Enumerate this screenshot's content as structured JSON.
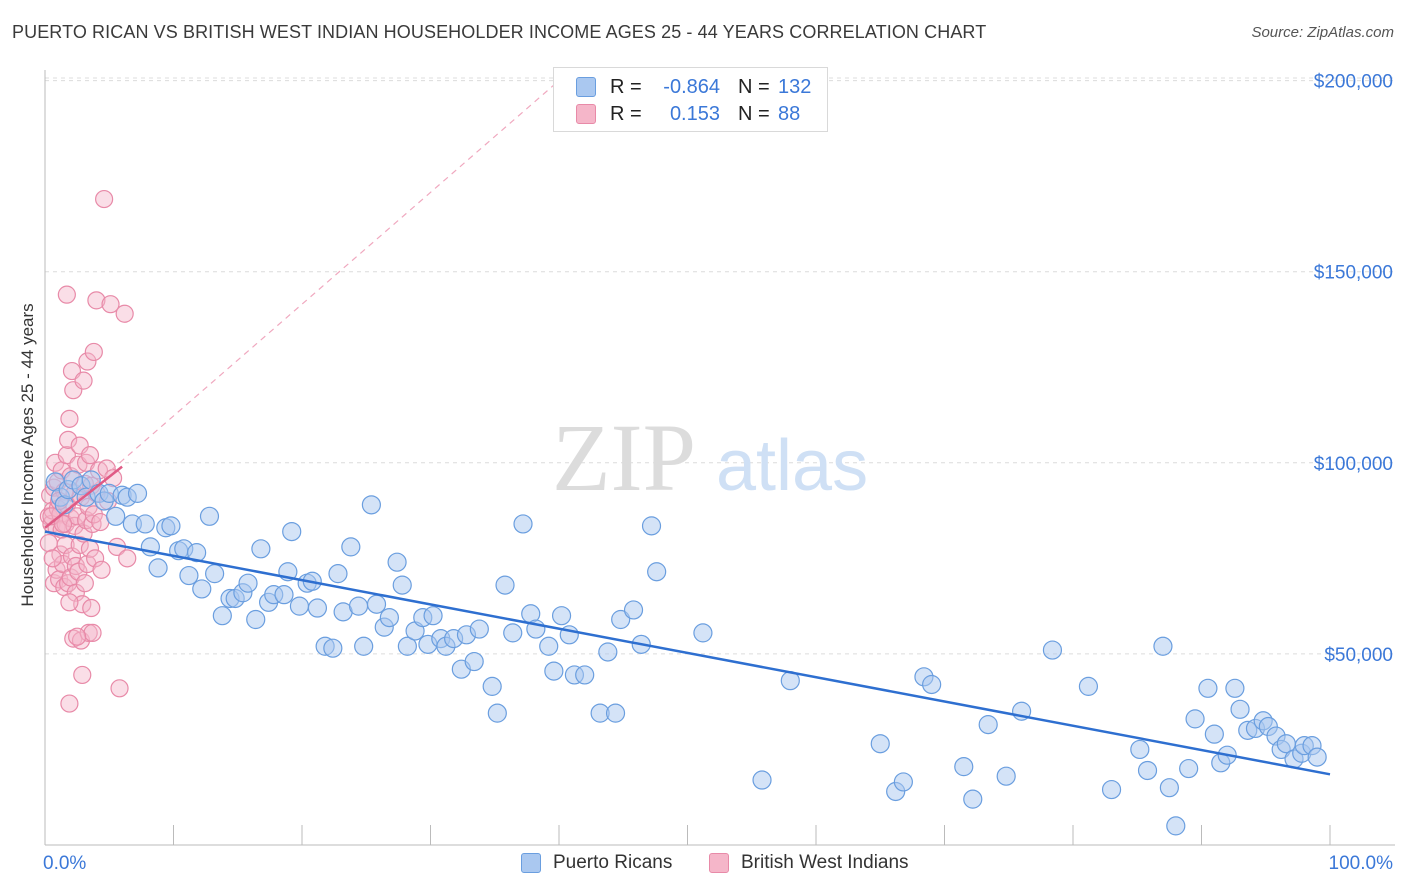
{
  "header": {
    "title": "PUERTO RICAN VS BRITISH WEST INDIAN HOUSEHOLDER INCOME AGES 25 - 44 YEARS CORRELATION CHART",
    "source": "Source: ZipAtlas.com"
  },
  "legend": {
    "rows": [
      {
        "r_label": "R =",
        "r_value": "-0.864",
        "n_label": "N =",
        "n_value": "132"
      },
      {
        "r_label": "R =",
        "r_value": "0.153",
        "n_label": "N =",
        "n_value": "88"
      }
    ],
    "bottom": [
      "Puerto Ricans",
      "British West Indians"
    ]
  },
  "colors": {
    "blue_fill": "#aac8f0",
    "blue_stroke": "#6a9edf",
    "blue_line": "#2e6fd0",
    "pink_fill": "#f5b6c9",
    "pink_stroke": "#e88aa8",
    "pink_line": "#e05a85",
    "tick_text": "#3b78d8",
    "grid": "#dcdcdc"
  },
  "watermark": {
    "zip": "ZIP",
    "atlas": "atlas"
  },
  "chart_data": {
    "type": "scatter",
    "title": "PUERTO RICAN VS BRITISH WEST INDIAN HOUSEHOLDER INCOME AGES 25 - 44 YEARS CORRELATION CHART",
    "xlabel": "",
    "ylabel": "Householder Income Ages 25 - 44 years",
    "xlim": [
      0,
      100
    ],
    "ylim": [
      0,
      215000
    ],
    "x_tick_labels": [
      "0.0%",
      "100.0%"
    ],
    "y_ticks": [
      50000,
      100000,
      150000,
      200000
    ],
    "y_tick_labels": [
      "$50,000",
      "$100,000",
      "$150,000",
      "$200,000"
    ],
    "grid": true,
    "series": [
      {
        "name": "Puerto Ricans",
        "r": -0.864,
        "n": 132,
        "trend": {
          "x": [
            0,
            100
          ],
          "y": [
            82000,
            18500
          ]
        },
        "points": [
          [
            0.8,
            95000
          ],
          [
            1.2,
            91000
          ],
          [
            1.5,
            89000
          ],
          [
            1.8,
            93000
          ],
          [
            2.2,
            95500
          ],
          [
            2.8,
            94000
          ],
          [
            3.2,
            91000
          ],
          [
            3.6,
            95500
          ],
          [
            4.2,
            92000
          ],
          [
            4.6,
            90000
          ],
          [
            5.0,
            92000
          ],
          [
            5.5,
            86000
          ],
          [
            6.0,
            91500
          ],
          [
            6.4,
            91000
          ],
          [
            7.2,
            92000
          ],
          [
            6.8,
            84000
          ],
          [
            7.8,
            84000
          ],
          [
            8.2,
            78000
          ],
          [
            8.8,
            72500
          ],
          [
            9.4,
            83000
          ],
          [
            9.8,
            83500
          ],
          [
            10.4,
            77000
          ],
          [
            10.8,
            77500
          ],
          [
            11.2,
            70500
          ],
          [
            11.8,
            76500
          ],
          [
            12.2,
            67000
          ],
          [
            12.8,
            86000
          ],
          [
            13.2,
            71000
          ],
          [
            13.8,
            60000
          ],
          [
            14.4,
            64500
          ],
          [
            14.8,
            64500
          ],
          [
            15.4,
            66000
          ],
          [
            15.8,
            68500
          ],
          [
            16.4,
            59000
          ],
          [
            16.8,
            77500
          ],
          [
            17.4,
            63500
          ],
          [
            17.8,
            65500
          ],
          [
            18.6,
            65500
          ],
          [
            18.9,
            71500
          ],
          [
            19.2,
            82000
          ],
          [
            19.8,
            62500
          ],
          [
            20.4,
            68500
          ],
          [
            20.8,
            69000
          ],
          [
            21.2,
            62000
          ],
          [
            21.8,
            52000
          ],
          [
            22.4,
            51500
          ],
          [
            22.8,
            71000
          ],
          [
            23.2,
            61000
          ],
          [
            23.8,
            78000
          ],
          [
            24.4,
            62500
          ],
          [
            24.8,
            52000
          ],
          [
            25.4,
            89000
          ],
          [
            25.8,
            63000
          ],
          [
            26.4,
            57000
          ],
          [
            26.8,
            59500
          ],
          [
            27.4,
            74000
          ],
          [
            27.8,
            68000
          ],
          [
            28.2,
            52000
          ],
          [
            28.8,
            56000
          ],
          [
            29.4,
            59500
          ],
          [
            29.8,
            52500
          ],
          [
            30.2,
            60000
          ],
          [
            30.8,
            54000
          ],
          [
            31.2,
            52000
          ],
          [
            31.8,
            54000
          ],
          [
            32.4,
            46000
          ],
          [
            32.8,
            55000
          ],
          [
            33.4,
            48000
          ],
          [
            33.8,
            56500
          ],
          [
            34.8,
            41500
          ],
          [
            35.2,
            34500
          ],
          [
            35.8,
            68000
          ],
          [
            36.4,
            55500
          ],
          [
            37.2,
            84000
          ],
          [
            37.8,
            60500
          ],
          [
            38.2,
            56500
          ],
          [
            39.2,
            52000
          ],
          [
            39.6,
            45500
          ],
          [
            40.2,
            60000
          ],
          [
            40.8,
            55000
          ],
          [
            41.2,
            44500
          ],
          [
            42.0,
            44500
          ],
          [
            43.2,
            34500
          ],
          [
            43.8,
            50500
          ],
          [
            44.4,
            34500
          ],
          [
            44.8,
            59000
          ],
          [
            45.8,
            61500
          ],
          [
            46.4,
            52500
          ],
          [
            47.2,
            83500
          ],
          [
            47.6,
            71500
          ],
          [
            51.2,
            55500
          ],
          [
            55.8,
            17000
          ],
          [
            58.0,
            43000
          ],
          [
            65.0,
            26500
          ],
          [
            66.2,
            14000
          ],
          [
            66.8,
            16500
          ],
          [
            68.4,
            44000
          ],
          [
            69.0,
            42000
          ],
          [
            71.5,
            20500
          ],
          [
            72.2,
            12000
          ],
          [
            73.4,
            31500
          ],
          [
            74.8,
            18000
          ],
          [
            76.0,
            35000
          ],
          [
            78.4,
            51000
          ],
          [
            81.2,
            41500
          ],
          [
            83.0,
            14500
          ],
          [
            85.2,
            25000
          ],
          [
            85.8,
            19500
          ],
          [
            87.0,
            52000
          ],
          [
            87.5,
            15000
          ],
          [
            88.0,
            5000
          ],
          [
            89.0,
            20000
          ],
          [
            89.5,
            33000
          ],
          [
            90.5,
            41000
          ],
          [
            91.0,
            29000
          ],
          [
            91.5,
            21500
          ],
          [
            92.0,
            23500
          ],
          [
            92.6,
            41000
          ],
          [
            93.0,
            35500
          ],
          [
            93.6,
            30000
          ],
          [
            94.2,
            30500
          ],
          [
            94.8,
            32500
          ],
          [
            95.2,
            31000
          ],
          [
            95.8,
            28500
          ],
          [
            96.2,
            25000
          ],
          [
            96.6,
            26500
          ],
          [
            97.2,
            22500
          ],
          [
            97.8,
            24000
          ],
          [
            98.0,
            26000
          ],
          [
            98.6,
            26000
          ],
          [
            99.0,
            23000
          ]
        ]
      },
      {
        "name": "British West Indians",
        "r": 0.153,
        "n": 88,
        "trend": {
          "x": [
            0,
            6
          ],
          "y": [
            83000,
            99000
          ]
        },
        "trend_extended": {
          "x": [
            0,
            40
          ],
          "y": [
            83000,
            200000
          ]
        },
        "points": [
          [
            0.3,
            86000
          ],
          [
            0.3,
            79000
          ],
          [
            0.4,
            91500
          ],
          [
            0.5,
            84000
          ],
          [
            0.6,
            87500
          ],
          [
            0.7,
            93500
          ],
          [
            0.7,
            68500
          ],
          [
            0.8,
            100000
          ],
          [
            0.9,
            83000
          ],
          [
            0.9,
            72000
          ],
          [
            1.0,
            88000
          ],
          [
            1.0,
            95000
          ],
          [
            1.1,
            69500
          ],
          [
            1.2,
            76000
          ],
          [
            1.2,
            86500
          ],
          [
            1.3,
            82500
          ],
          [
            1.3,
            98000
          ],
          [
            1.4,
            73500
          ],
          [
            1.5,
            92500
          ],
          [
            1.5,
            67500
          ],
          [
            1.6,
            84000
          ],
          [
            1.6,
            78500
          ],
          [
            1.7,
            144000
          ],
          [
            1.7,
            89000
          ],
          [
            1.7,
            102000
          ],
          [
            1.8,
            106000
          ],
          [
            1.8,
            68500
          ],
          [
            1.9,
            111500
          ],
          [
            1.9,
            37000
          ],
          [
            2.0,
            96500
          ],
          [
            2.0,
            85500
          ],
          [
            2.0,
            70000
          ],
          [
            2.1,
            124000
          ],
          [
            2.1,
            75500
          ],
          [
            2.2,
            119000
          ],
          [
            2.2,
            54000
          ],
          [
            2.3,
            92000
          ],
          [
            2.3,
            83500
          ],
          [
            2.4,
            73000
          ],
          [
            2.4,
            66000
          ],
          [
            2.5,
            86000
          ],
          [
            2.6,
            99500
          ],
          [
            2.6,
            71500
          ],
          [
            2.7,
            104500
          ],
          [
            2.7,
            78500
          ],
          [
            2.8,
            91000
          ],
          [
            2.8,
            53500
          ],
          [
            2.9,
            63000
          ],
          [
            3.0,
            81500
          ],
          [
            3.0,
            121500
          ],
          [
            3.1,
            94500
          ],
          [
            3.1,
            68500
          ],
          [
            3.2,
            85000
          ],
          [
            3.2,
            100000
          ],
          [
            3.3,
            126500
          ],
          [
            3.3,
            73500
          ],
          [
            3.4,
            88500
          ],
          [
            3.4,
            55500
          ],
          [
            3.5,
            102000
          ],
          [
            3.5,
            77500
          ],
          [
            3.6,
            94000
          ],
          [
            3.6,
            62000
          ],
          [
            3.7,
            84000
          ],
          [
            3.8,
            129000
          ],
          [
            3.8,
            86500
          ],
          [
            3.9,
            75000
          ],
          [
            4.0,
            142500
          ],
          [
            4.0,
            92000
          ],
          [
            4.2,
            98000
          ],
          [
            4.3,
            84500
          ],
          [
            4.4,
            72000
          ],
          [
            4.6,
            169000
          ],
          [
            4.8,
            98500
          ],
          [
            4.9,
            90000
          ],
          [
            5.1,
            141500
          ],
          [
            5.3,
            96000
          ],
          [
            5.6,
            78000
          ],
          [
            5.8,
            41000
          ],
          [
            6.2,
            139000
          ],
          [
            6.4,
            75000
          ],
          [
            0.5,
            86000
          ],
          [
            0.6,
            75000
          ],
          [
            1.4,
            84000
          ],
          [
            2.9,
            44500
          ],
          [
            3.7,
            55500
          ],
          [
            1.1,
            90000
          ],
          [
            2.5,
            54500
          ],
          [
            1.9,
            63500
          ]
        ]
      }
    ]
  }
}
